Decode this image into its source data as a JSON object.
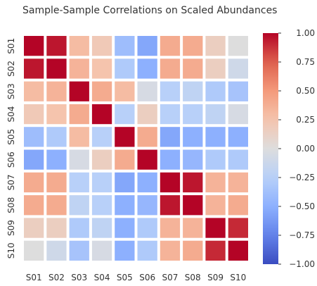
{
  "chart_data": {
    "type": "heatmap",
    "title": "Sample-Sample Correlations on Scaled Abundances",
    "xlabel": "",
    "ylabel": "",
    "rows": [
      "S01",
      "S02",
      "S03",
      "S04",
      "S05",
      "S06",
      "S07",
      "S08",
      "S09",
      "S10"
    ],
    "cols": [
      "S01",
      "S02",
      "S03",
      "S04",
      "S05",
      "S06",
      "S07",
      "S08",
      "S09",
      "S10"
    ],
    "values": [
      [
        1.0,
        0.95,
        0.3,
        0.2,
        -0.4,
        -0.55,
        0.4,
        0.4,
        0.15,
        0.0
      ],
      [
        0.95,
        1.0,
        0.35,
        0.25,
        -0.3,
        -0.5,
        0.4,
        0.4,
        0.15,
        -0.1
      ],
      [
        0.3,
        0.35,
        1.0,
        0.4,
        0.3,
        -0.05,
        -0.25,
        -0.2,
        -0.3,
        -0.35
      ],
      [
        0.2,
        0.25,
        0.4,
        1.0,
        -0.25,
        0.15,
        -0.25,
        -0.25,
        -0.2,
        -0.05
      ],
      [
        -0.4,
        -0.3,
        0.3,
        -0.25,
        1.0,
        0.4,
        -0.55,
        -0.5,
        -0.5,
        -0.5
      ],
      [
        -0.55,
        -0.5,
        -0.05,
        0.15,
        0.4,
        1.0,
        -0.5,
        -0.45,
        -0.3,
        -0.3
      ],
      [
        0.4,
        0.4,
        -0.25,
        -0.25,
        -0.55,
        -0.5,
        1.0,
        0.95,
        0.35,
        0.35
      ],
      [
        0.4,
        0.4,
        -0.2,
        -0.25,
        -0.5,
        -0.45,
        0.95,
        1.0,
        0.35,
        0.4
      ],
      [
        0.15,
        0.15,
        -0.3,
        -0.2,
        -0.5,
        -0.3,
        0.35,
        0.35,
        1.0,
        0.9
      ],
      [
        0.0,
        -0.1,
        -0.35,
        -0.05,
        -0.5,
        -0.3,
        0.35,
        0.4,
        0.9,
        1.0
      ]
    ],
    "vmin": -1.0,
    "vmax": 1.0,
    "colormap": "coolwarm",
    "colorbar_ticks": [
      "1.00",
      "0.75",
      "0.50",
      "0.25",
      "0.00",
      "−0.25",
      "−0.50",
      "−0.75",
      "−1.00"
    ],
    "colorbar_values": [
      1.0,
      0.75,
      0.5,
      0.25,
      0.0,
      -0.25,
      -0.5,
      -0.75,
      -1.0
    ],
    "cell_border_color": "#ffffff"
  }
}
